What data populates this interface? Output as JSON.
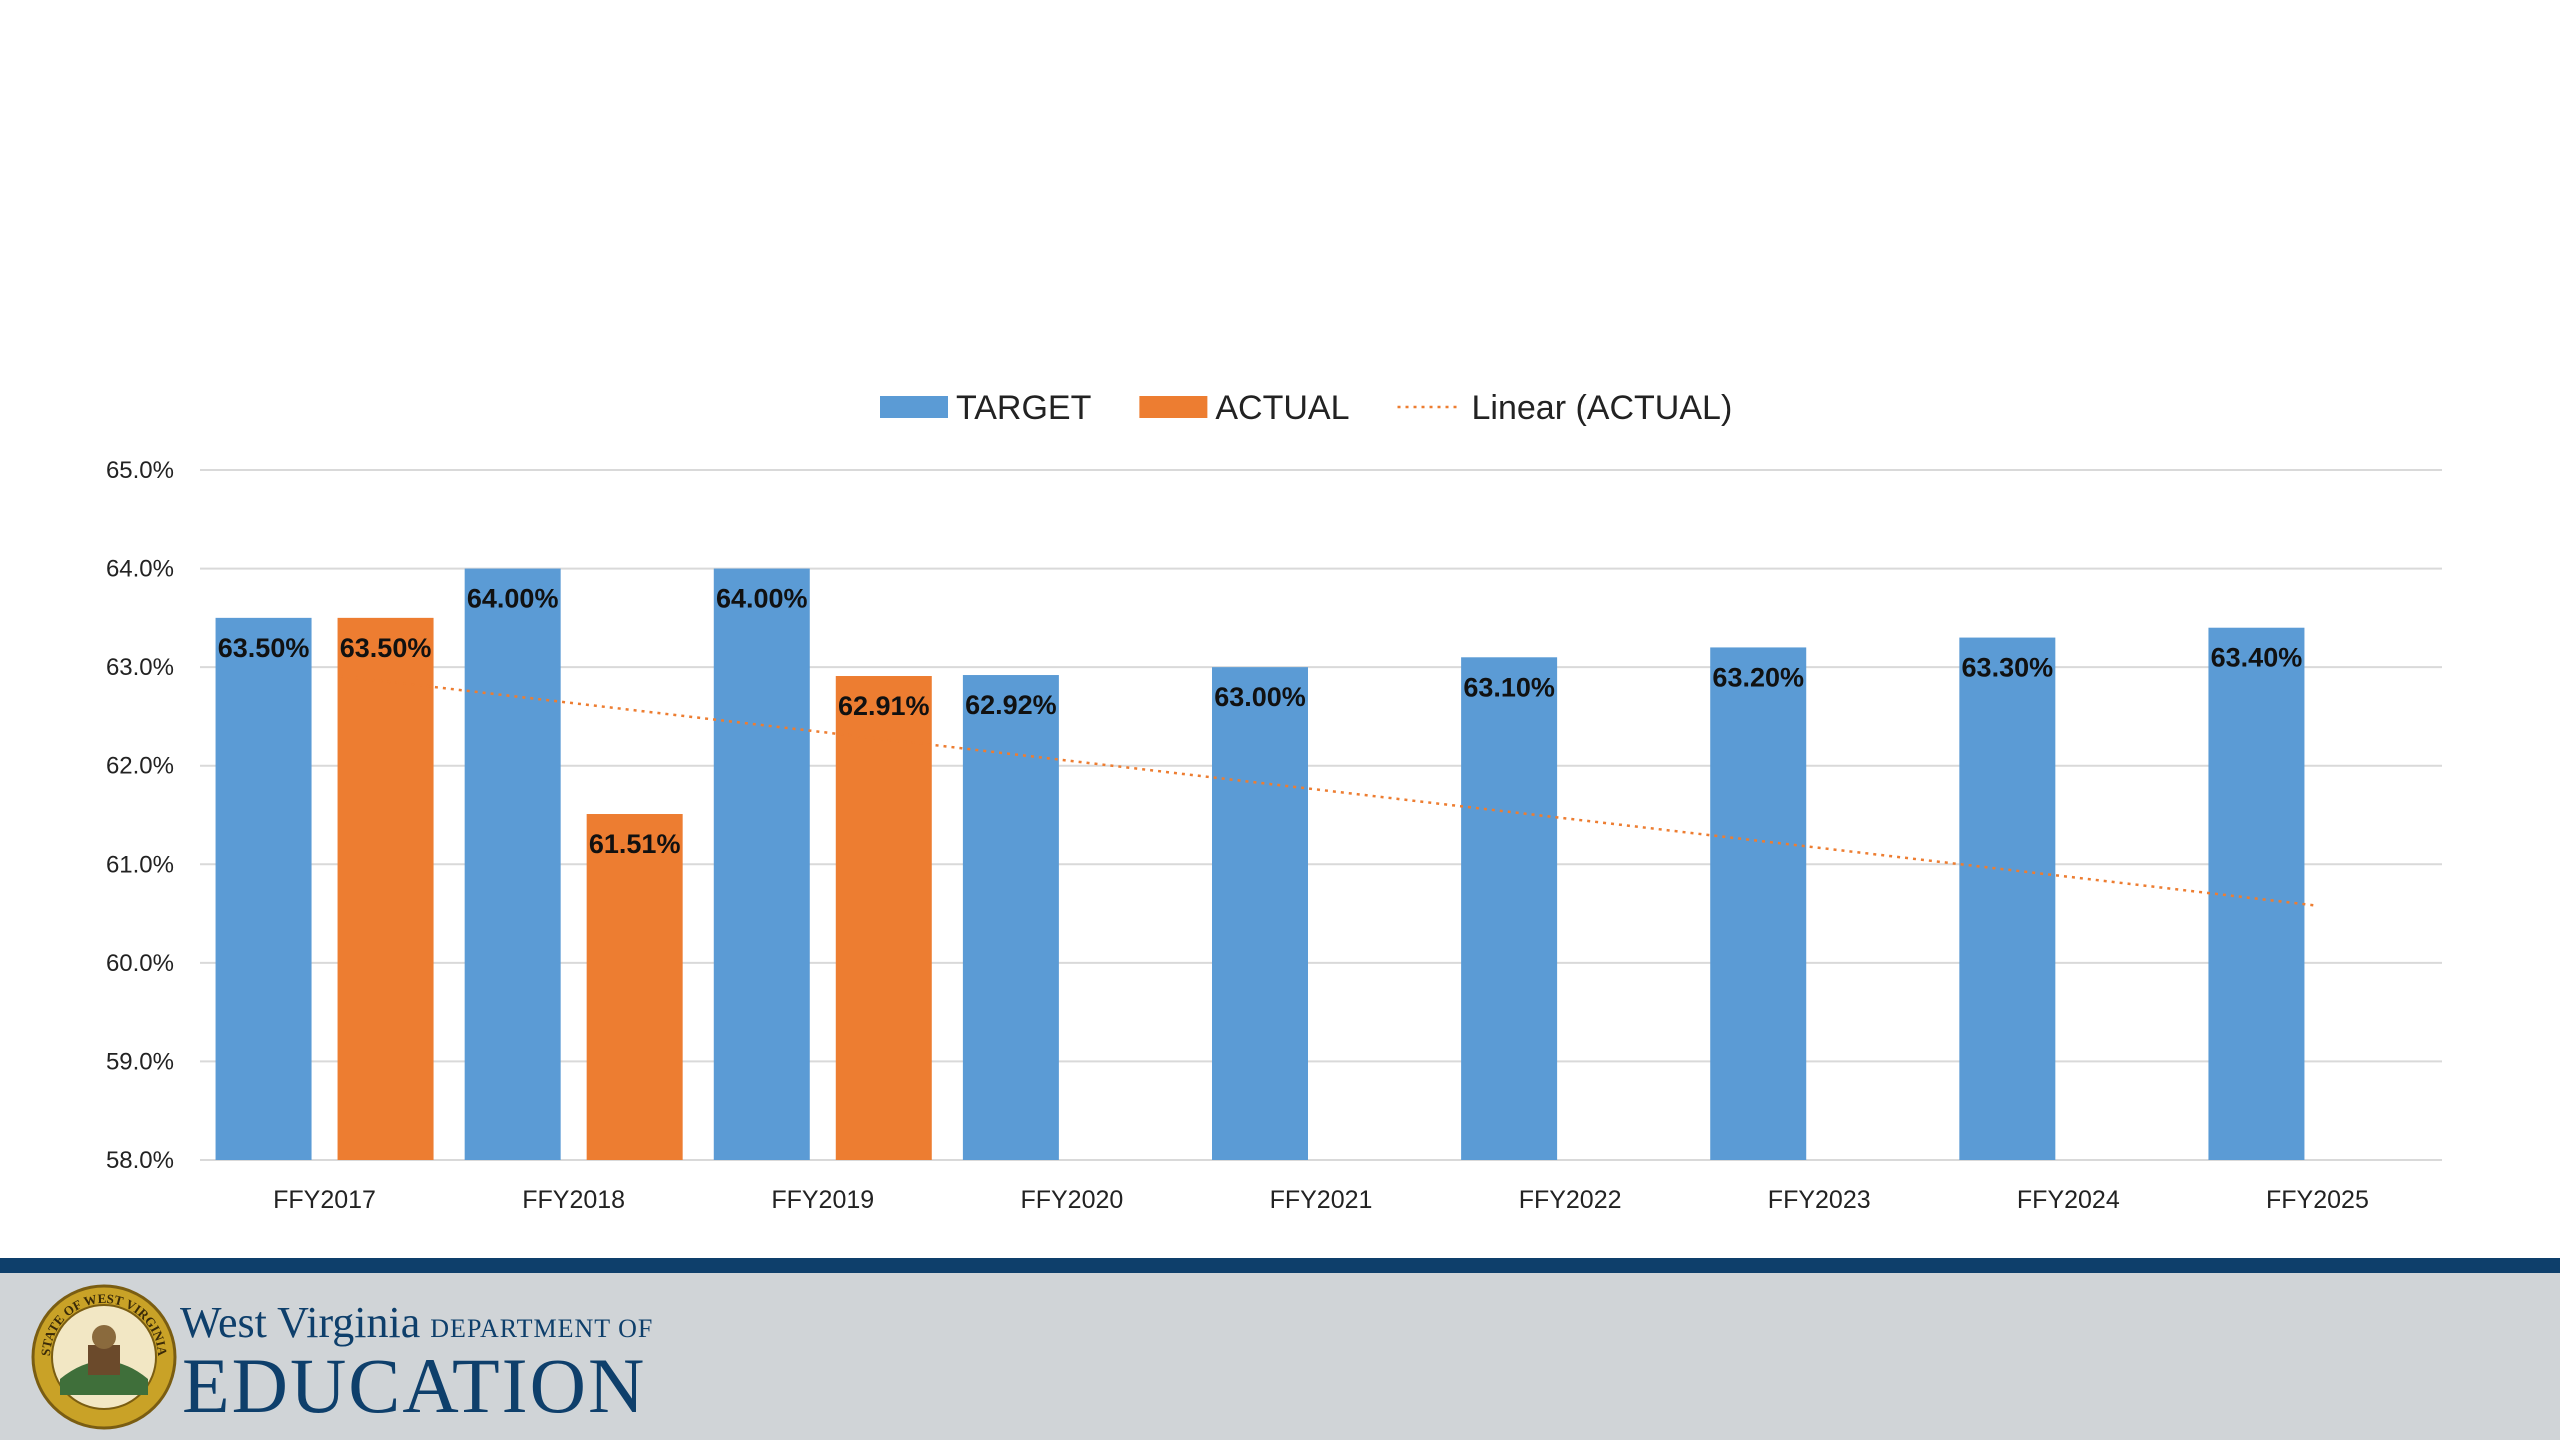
{
  "chart_data": {
    "type": "bar",
    "categories": [
      "FFY2017",
      "FFY2018",
      "FFY2019",
      "FFY2020",
      "FFY2021",
      "FFY2022",
      "FFY2023",
      "FFY2024",
      "FFY2025"
    ],
    "series": [
      {
        "name": "TARGET",
        "color": "#5b9bd5",
        "values": [
          63.5,
          64.0,
          64.0,
          62.92,
          63.0,
          63.1,
          63.2,
          63.3,
          63.4
        ],
        "labels": [
          "63.50%",
          "64.00%",
          "64.00%",
          "62.92%",
          "63.00%",
          "63.10%",
          "63.20%",
          "63.30%",
          "63.40%"
        ]
      },
      {
        "name": "ACTUAL",
        "color": "#ed7d31",
        "values": [
          63.5,
          61.51,
          62.91,
          null,
          null,
          null,
          null,
          null,
          null
        ],
        "labels": [
          "63.50%",
          "61.51%",
          "62.91%",
          null,
          null,
          null,
          null,
          null,
          null
        ]
      }
    ],
    "trendline": {
      "name": "Linear (ACTUAL)",
      "of_series": "ACTUAL",
      "style": "dotted",
      "color": "#ed7d31",
      "start": {
        "category": "FFY2017",
        "value": 62.91
      },
      "end": {
        "category": "FFY2025",
        "value": 60.58
      }
    },
    "title": "",
    "xlabel": "",
    "ylabel": "",
    "ylim": [
      58.0,
      65.0
    ],
    "yticks": [
      "58.0%",
      "59.0%",
      "60.0%",
      "61.0%",
      "62.0%",
      "63.0%",
      "64.0%",
      "65.0%"
    ],
    "grid": true,
    "legend_position": "top-center"
  },
  "footer": {
    "logo_line1": "West Virginia",
    "logo_dept": "DEPARTMENT OF",
    "logo_line2": "EDUCATION",
    "seal_text": "STATE OF WEST VIRGINIA"
  },
  "colors": {
    "footer_rule": "#0e3f6b",
    "footer_bg": "#d0d4d7",
    "gridline": "#d9d9d9"
  }
}
